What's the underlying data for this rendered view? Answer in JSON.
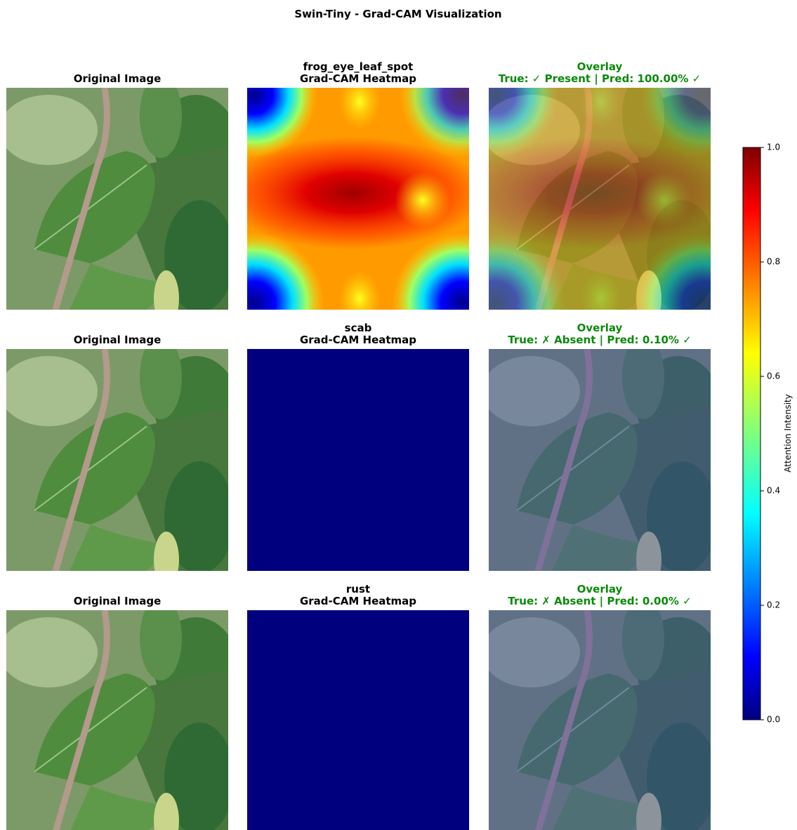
{
  "title": "Swin-Tiny - Grad-CAM Visualization",
  "rows": [
    {
      "original_title": "Original Image",
      "class_name": "frog_eye_leaf_spot",
      "heatmap_title": "Grad-CAM Heatmap",
      "overlay_title": "Overlay",
      "overlay_status": "True: ✓ Present | Pred: 100.00% ✓"
    },
    {
      "original_title": "Original Image",
      "class_name": "scab",
      "heatmap_title": "Grad-CAM Heatmap",
      "overlay_title": "Overlay",
      "overlay_status": "True: ✗ Absent | Pred: 0.10% ✓"
    },
    {
      "original_title": "Original Image",
      "class_name": "rust",
      "heatmap_title": "Grad-CAM Heatmap",
      "overlay_title": "Overlay",
      "overlay_status": "True: ✗ Absent | Pred: 0.00% ✓"
    }
  ],
  "colorbar": {
    "label": "Attention Intensity",
    "lim": [
      0,
      1
    ],
    "ticks": [
      {
        "value": 0,
        "label": "0.0"
      },
      0.2,
      0.4,
      0.6,
      0.8,
      {
        "value": 1,
        "label": "1.0"
      }
    ]
  }
}
